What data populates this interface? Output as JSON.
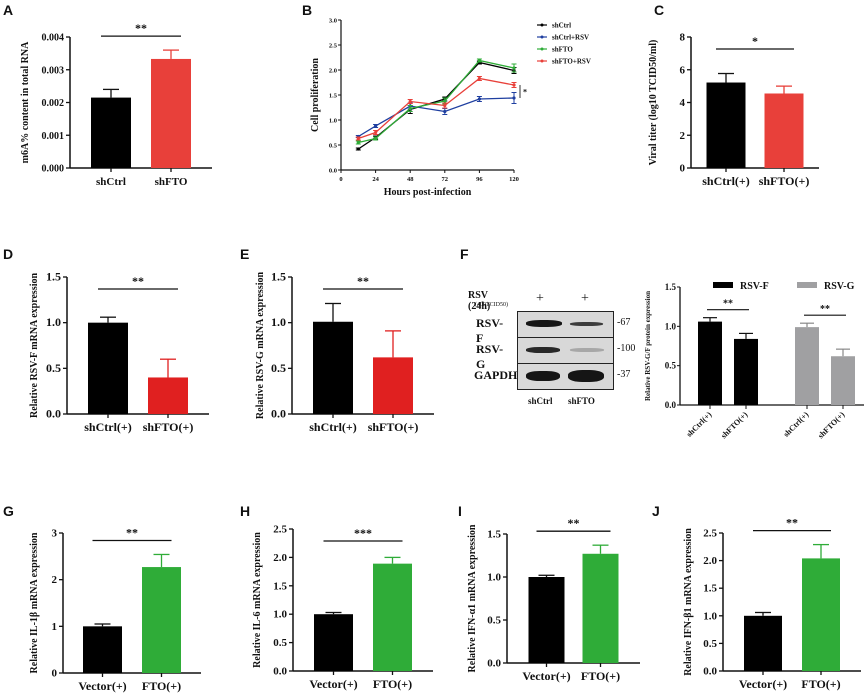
{
  "panels": {
    "A": "A",
    "B": "B",
    "C": "C",
    "D": "D",
    "E": "E",
    "F": "F",
    "G": "G",
    "H": "H",
    "I": "I",
    "J": "J"
  },
  "colors": {
    "black": "#000000",
    "red": "#e8403a",
    "red_dark": "#e02020",
    "blue": "#1f3fa0",
    "green": "#2fac38",
    "gray": "#a0a0a2"
  },
  "western_blot": {
    "condition_label": "RSV (24h)",
    "condition_sublabel": "(400TCID50)",
    "lane_marks": [
      "+",
      "+"
    ],
    "rows": [
      {
        "name": "RSV-F",
        "kda": "-67",
        "intensity": [
          0.9,
          0.6
        ]
      },
      {
        "name": "RSV-G",
        "kda": "-100",
        "intensity": [
          0.85,
          0.3
        ]
      },
      {
        "name": "GAPDH",
        "kda": "-37",
        "intensity": [
          1.0,
          1.0
        ]
      }
    ],
    "lanes": [
      "shCtrl",
      "shFTO"
    ]
  },
  "chart_data": [
    {
      "id": "A",
      "type": "bar",
      "ylabel": "m6A% content in total RNA",
      "categories": [
        "shCtrl",
        "shFTO"
      ],
      "values": [
        0.00215,
        0.00333
      ],
      "errors": [
        0.00025,
        0.00027
      ],
      "colors": [
        "#000000",
        "#e8403a"
      ],
      "ylim": [
        0,
        0.004
      ],
      "yticks": [
        "0.000",
        "0.001",
        "0.002",
        "0.003",
        "0.004"
      ],
      "significance": "**"
    },
    {
      "id": "B",
      "type": "line",
      "xlabel": "Hours post-infection",
      "ylabel": "Cell proliferation",
      "x": [
        12,
        24,
        48,
        72,
        96,
        120
      ],
      "xticks": [
        "0",
        "24",
        "48",
        "72",
        "96",
        "120"
      ],
      "xlim": [
        0,
        120
      ],
      "ylim": [
        0,
        3.0
      ],
      "yticks": [
        "0.0",
        "0.5",
        "1.0",
        "1.5",
        "2.0",
        "2.5",
        "3.0"
      ],
      "series": [
        {
          "name": "shCtrl",
          "color": "#000000",
          "values": [
            0.42,
            0.65,
            1.21,
            1.42,
            2.15,
            1.99
          ],
          "errors": [
            0.02,
            0.03,
            0.08,
            0.04,
            0.03,
            0.06
          ]
        },
        {
          "name": "shCtrl+RSV",
          "color": "#1f3fa0",
          "values": [
            0.67,
            0.88,
            1.28,
            1.17,
            1.42,
            1.44
          ],
          "errors": [
            0.02,
            0.03,
            0.06,
            0.06,
            0.05,
            0.11
          ]
        },
        {
          "name": "shFTO",
          "color": "#2fac38",
          "values": [
            0.55,
            0.63,
            1.23,
            1.38,
            2.19,
            2.04
          ],
          "errors": [
            0.03,
            0.03,
            0.06,
            0.06,
            0.03,
            0.08
          ]
        },
        {
          "name": "shFTO+RSV",
          "color": "#e8403a",
          "values": [
            0.63,
            0.75,
            1.37,
            1.29,
            1.83,
            1.7
          ],
          "errors": [
            0.03,
            0.04,
            0.04,
            0.05,
            0.04,
            0.05
          ]
        }
      ],
      "significance": "*",
      "legend": "top-right"
    },
    {
      "id": "C",
      "type": "bar",
      "ylabel": "Viral titer (log10 TCID50/ml)",
      "categories": [
        "shCtrl(+)",
        "shFTO(+)"
      ],
      "values": [
        5.22,
        4.55
      ],
      "errors": [
        0.55,
        0.45
      ],
      "colors": [
        "#000000",
        "#e8403a"
      ],
      "ylim": [
        0,
        8
      ],
      "yticks": [
        "0",
        "2",
        "4",
        "6",
        "8"
      ],
      "significance": "*"
    },
    {
      "id": "D",
      "type": "bar",
      "ylabel": "Relative RSV-F mRNA expression",
      "categories": [
        "shCtrl(+)",
        "shFTO(+)"
      ],
      "values": [
        1.0,
        0.4
      ],
      "errors": [
        0.06,
        0.2
      ],
      "colors": [
        "#000000",
        "#e02020"
      ],
      "ylim": [
        0,
        1.5
      ],
      "yticks": [
        "0.0",
        "0.5",
        "1.0",
        "1.5"
      ],
      "significance": "**"
    },
    {
      "id": "E",
      "type": "bar",
      "ylabel": "Relative RSV-G mRNA expression",
      "categories": [
        "shCtrl(+)",
        "shFTO(+)"
      ],
      "values": [
        1.01,
        0.62
      ],
      "errors": [
        0.2,
        0.29
      ],
      "colors": [
        "#000000",
        "#e02020"
      ],
      "ylim": [
        0,
        1.5
      ],
      "yticks": [
        "0.0",
        "0.5",
        "1.0",
        "1.5"
      ],
      "significance": "**"
    },
    {
      "id": "F",
      "type": "bar",
      "ylabel": "Relative RSV-G/F protein expression",
      "categories": [
        "shCtrl(+)",
        "shFTO(+)",
        "shCtrl(+)",
        "shFTO(+)"
      ],
      "series": [
        {
          "name": "RSV-F",
          "color": "#000000",
          "values": [
            1.06,
            0.84
          ],
          "errors": [
            0.05,
            0.07
          ]
        },
        {
          "name": "RSV-G",
          "color": "#a0a0a2",
          "values": [
            0.99,
            0.62
          ],
          "errors": [
            0.05,
            0.09
          ]
        }
      ],
      "ylim": [
        0,
        1.5
      ],
      "yticks": [
        "0.0",
        "0.5",
        "1.0",
        "1.5"
      ],
      "significance": [
        "**",
        "**"
      ],
      "legend": "top"
    },
    {
      "id": "G",
      "type": "bar",
      "ylabel": "Relative IL-1β mRNA expression",
      "categories": [
        "Vector(+)",
        "FTO(+)"
      ],
      "values": [
        1.0,
        2.27
      ],
      "errors": [
        0.05,
        0.27
      ],
      "colors": [
        "#000000",
        "#2fac38"
      ],
      "ylim": [
        0,
        3
      ],
      "yticks": [
        "0",
        "1",
        "2",
        "3"
      ],
      "significance": "**"
    },
    {
      "id": "H",
      "type": "bar",
      "ylabel": "Relative IL-6 mRNA expression",
      "categories": [
        "Vector(+)",
        "FTO(+)"
      ],
      "values": [
        1.0,
        1.89
      ],
      "errors": [
        0.03,
        0.11
      ],
      "colors": [
        "#000000",
        "#2fac38"
      ],
      "ylim": [
        0,
        2.5
      ],
      "yticks": [
        "0.0",
        "0.5",
        "1.0",
        "1.5",
        "2.0",
        "2.5"
      ],
      "significance": "***"
    },
    {
      "id": "I",
      "type": "bar",
      "ylabel": "Relative IFN-α1 mRNA expression",
      "categories": [
        "Vector(+)",
        "FTO(+)"
      ],
      "values": [
        1.0,
        1.27
      ],
      "errors": [
        0.02,
        0.1
      ],
      "colors": [
        "#000000",
        "#2fac38"
      ],
      "ylim": [
        0,
        1.5
      ],
      "yticks": [
        "0.0",
        "0.5",
        "1.0",
        "1.5"
      ],
      "significance": "**"
    },
    {
      "id": "J",
      "type": "bar",
      "ylabel": "Relative IFN-β1 mRNA expression",
      "categories": [
        "Vector(+)",
        "FTO(+)"
      ],
      "values": [
        1.0,
        2.04
      ],
      "errors": [
        0.06,
        0.25
      ],
      "colors": [
        "#000000",
        "#2fac38"
      ],
      "ylim": [
        0,
        2.5
      ],
      "yticks": [
        "0.0",
        "0.5",
        "1.0",
        "1.5",
        "2.0",
        "2.5"
      ],
      "significance": "**"
    }
  ]
}
